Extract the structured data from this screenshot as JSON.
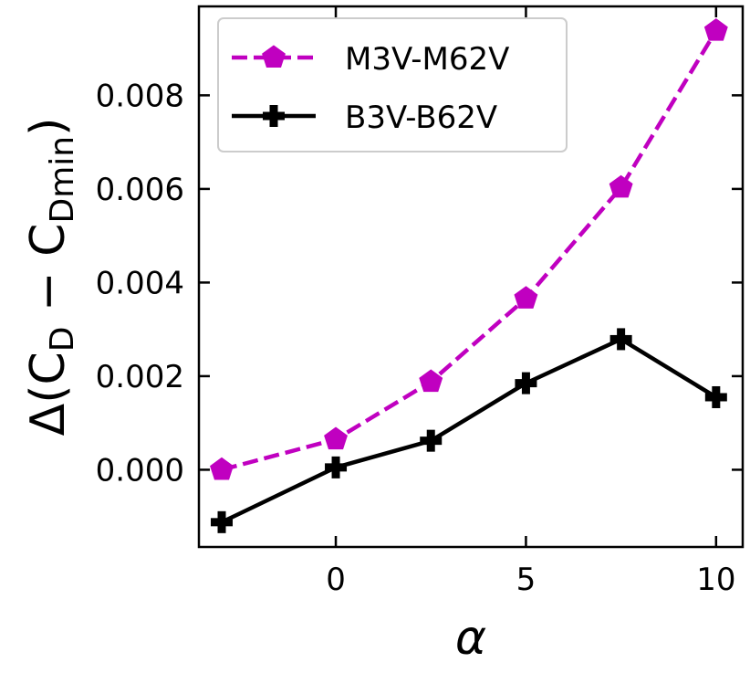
{
  "chart_data": {
    "type": "line",
    "title": "",
    "xlabel": "α",
    "ylabel": {
      "prefix": "Δ(C",
      "sub1": "D",
      "middle": " − C",
      "sub2": "Dmin",
      "suffix": ")"
    },
    "xlim": [
      -3.6,
      10.7
    ],
    "ylim": [
      -0.00165,
      0.0099
    ],
    "x_ticks": [
      0,
      5,
      10
    ],
    "x_tick_labels": [
      "0",
      "5",
      "10"
    ],
    "y_ticks": [
      0.0,
      0.002,
      0.004,
      0.006,
      0.008
    ],
    "y_tick_labels": [
      "0.000",
      "0.002",
      "0.004",
      "0.006",
      "0.008"
    ],
    "grid": false,
    "legend_position": "top-left",
    "series": [
      {
        "name": "M3V-M62V",
        "color": "#c000c0",
        "line_style": "dashed",
        "marker": "pentagon",
        "x": [
          -3,
          0,
          2.5,
          5,
          7.5,
          10
        ],
        "y": [
          0.0,
          0.00065,
          0.00188,
          0.00366,
          0.00603,
          0.00938
        ]
      },
      {
        "name": "B3V-B62V",
        "color": "#000000",
        "line_style": "solid",
        "marker": "plus",
        "x": [
          -3,
          0,
          2.5,
          5,
          7.5,
          10
        ],
        "y": [
          -0.00112,
          5e-05,
          0.00062,
          0.00185,
          0.00279,
          0.00155
        ]
      }
    ]
  }
}
